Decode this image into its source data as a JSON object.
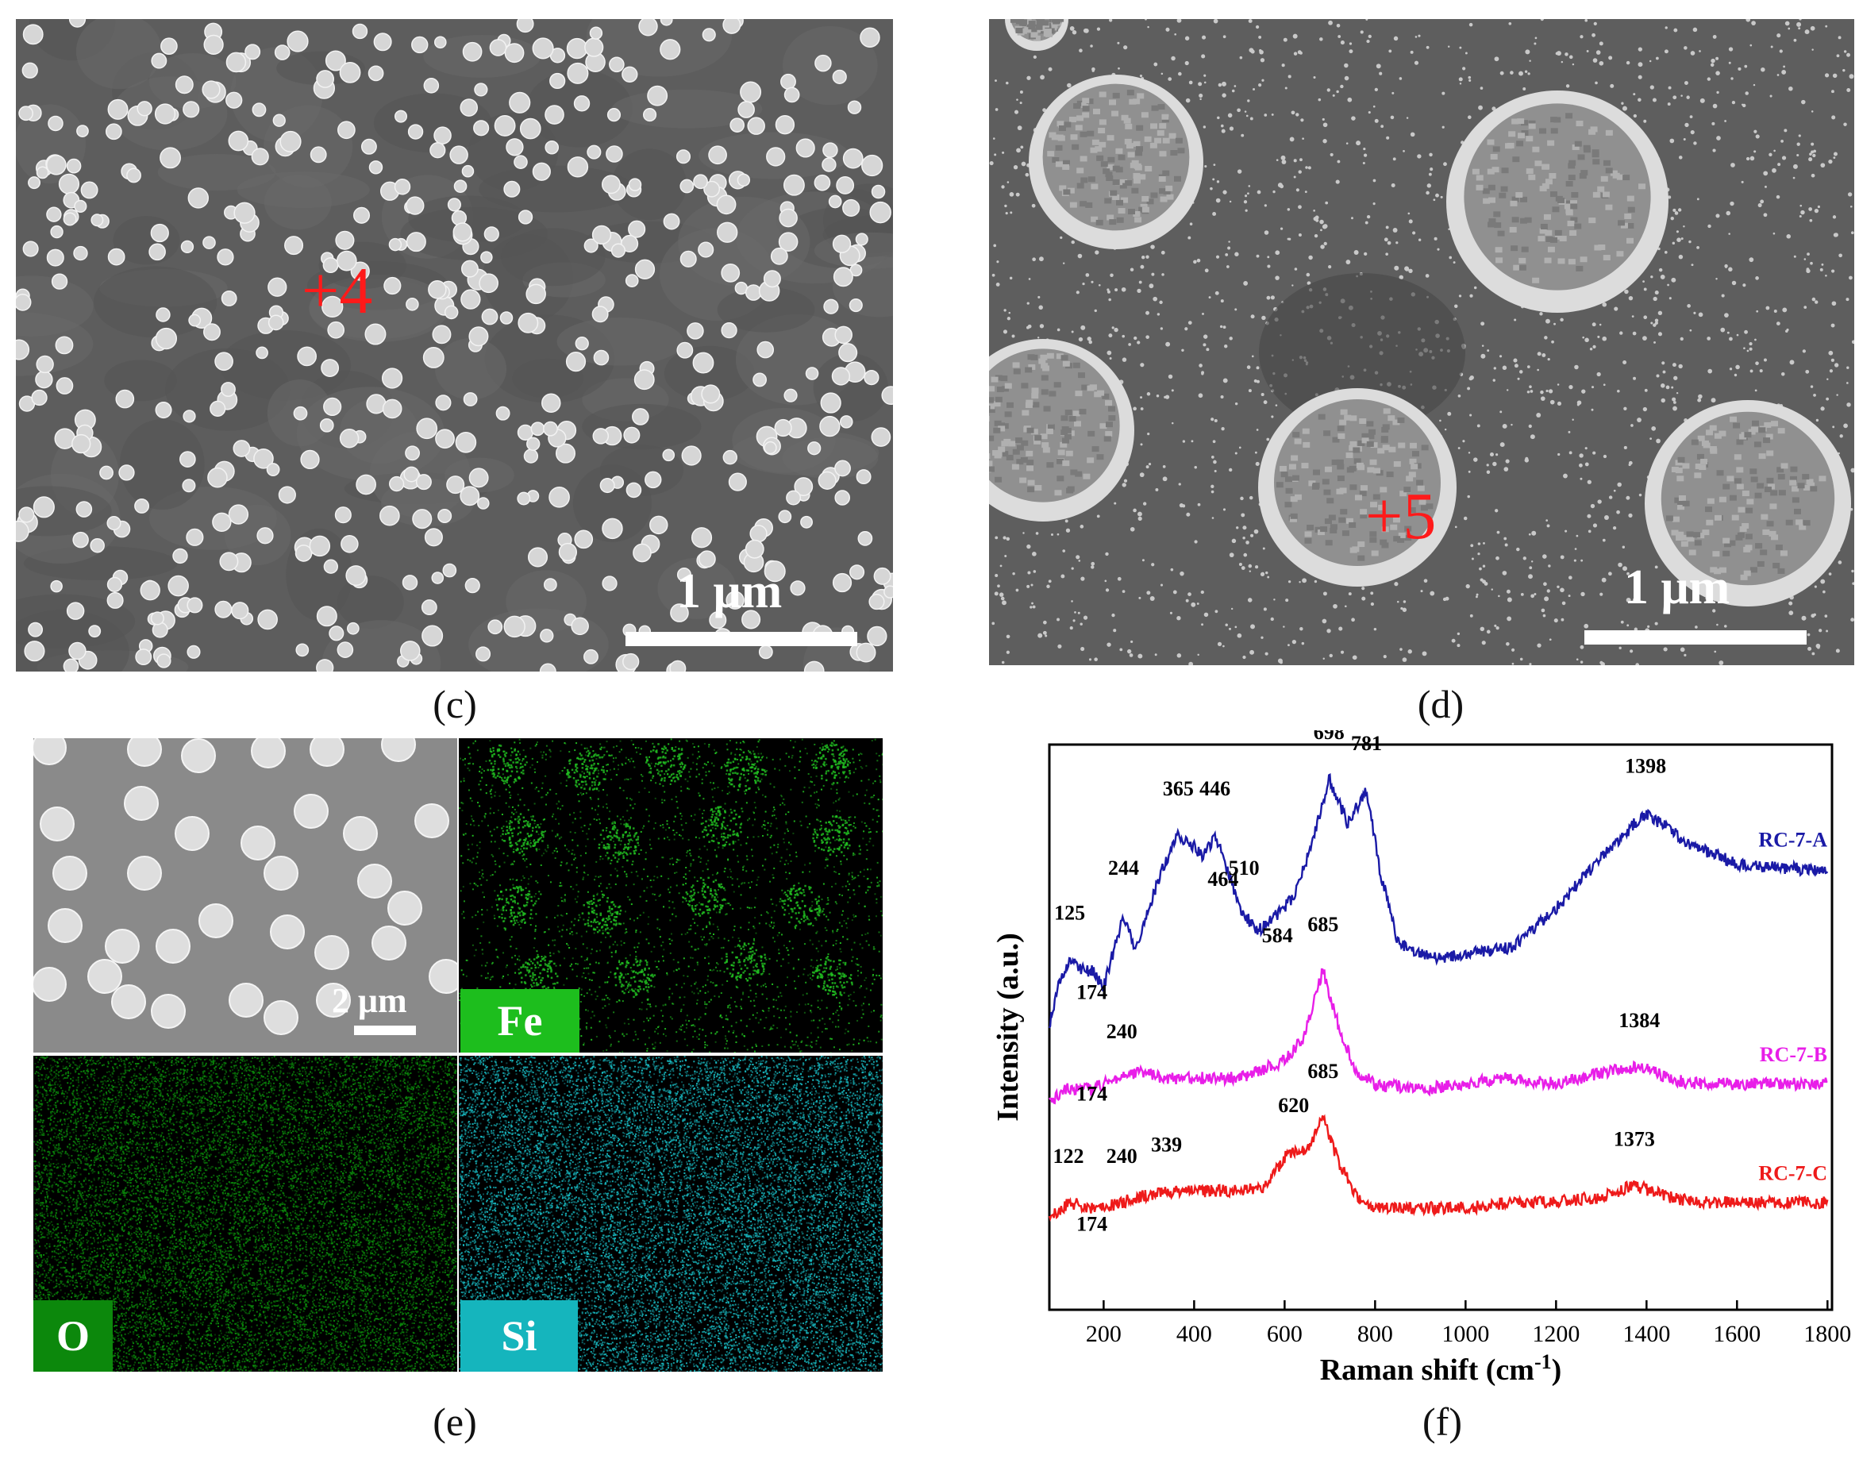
{
  "panels": {
    "c": {
      "caption": "(c)",
      "marker": "+4",
      "scale_label": "1 μm"
    },
    "d": {
      "caption": "(d)",
      "marker": "+5",
      "scale_label": "1 μm"
    },
    "e": {
      "caption": "(e)",
      "scale_label": "2 μm",
      "maps": [
        {
          "element": "Fe",
          "color": "#22c322"
        },
        {
          "element": "O",
          "color": "#0b8a0b"
        },
        {
          "element": "Si",
          "color": "#18b8c0"
        }
      ]
    },
    "f": {
      "caption": "(f)"
    }
  },
  "chart_data": {
    "type": "line",
    "xlabel": "Raman shift (cm",
    "xlabel_sup": "-1",
    "xlabel_end": ")",
    "ylabel": "Intensity (a.u.)",
    "xlim": [
      80,
      1810
    ],
    "xticks": [
      200,
      400,
      600,
      800,
      1000,
      1200,
      1400,
      1600,
      1800
    ],
    "y_ticks_shown": false,
    "series": [
      {
        "name": "RC-7-A",
        "color": "#1a1aa6",
        "points": [
          [
            80,
            0.5
          ],
          [
            100,
            0.58
          ],
          [
            125,
            0.62
          ],
          [
            150,
            0.6
          ],
          [
            174,
            0.6
          ],
          [
            200,
            0.57
          ],
          [
            220,
            0.63
          ],
          [
            244,
            0.7
          ],
          [
            270,
            0.64
          ],
          [
            300,
            0.71
          ],
          [
            330,
            0.78
          ],
          [
            365,
            0.84
          ],
          [
            400,
            0.82
          ],
          [
            420,
            0.8
          ],
          [
            446,
            0.84
          ],
          [
            464,
            0.8
          ],
          [
            500,
            0.71
          ],
          [
            540,
            0.67
          ],
          [
            584,
            0.7
          ],
          [
            620,
            0.73
          ],
          [
            660,
            0.82
          ],
          [
            698,
            0.94
          ],
          [
            740,
            0.86
          ],
          [
            781,
            0.92
          ],
          [
            810,
            0.78
          ],
          [
            850,
            0.65
          ],
          [
            900,
            0.63
          ],
          [
            950,
            0.62
          ],
          [
            1000,
            0.63
          ],
          [
            1100,
            0.64
          ],
          [
            1200,
            0.71
          ],
          [
            1300,
            0.8
          ],
          [
            1398,
            0.88
          ],
          [
            1450,
            0.85
          ],
          [
            1500,
            0.82
          ],
          [
            1600,
            0.79
          ],
          [
            1700,
            0.78
          ],
          [
            1800,
            0.78
          ]
        ],
        "annotations": [
          {
            "x": 125,
            "label": "125"
          },
          {
            "x": 174,
            "label": "174"
          },
          {
            "x": 244,
            "label": "244"
          },
          {
            "x": 365,
            "label": "365"
          },
          {
            "x": 446,
            "label": "446"
          },
          {
            "x": 464,
            "label": "464"
          },
          {
            "x": 510,
            "label": "510"
          },
          {
            "x": 584,
            "label": "584"
          },
          {
            "x": 698,
            "label": "698"
          },
          {
            "x": 781,
            "label": "781"
          },
          {
            "x": 1398,
            "label": "1398"
          }
        ]
      },
      {
        "name": "RC-7-B",
        "color": "#e81ee8",
        "points": [
          [
            80,
            0.37
          ],
          [
            120,
            0.39
          ],
          [
            174,
            0.39
          ],
          [
            200,
            0.4
          ],
          [
            240,
            0.41
          ],
          [
            280,
            0.42
          ],
          [
            339,
            0.41
          ],
          [
            400,
            0.41
          ],
          [
            500,
            0.41
          ],
          [
            600,
            0.44
          ],
          [
            640,
            0.48
          ],
          [
            685,
            0.6
          ],
          [
            720,
            0.5
          ],
          [
            760,
            0.42
          ],
          [
            800,
            0.4
          ],
          [
            900,
            0.39
          ],
          [
            1000,
            0.4
          ],
          [
            1100,
            0.41
          ],
          [
            1200,
            0.4
          ],
          [
            1300,
            0.42
          ],
          [
            1384,
            0.43
          ],
          [
            1450,
            0.41
          ],
          [
            1500,
            0.4
          ],
          [
            1600,
            0.4
          ],
          [
            1700,
            0.4
          ],
          [
            1800,
            0.4
          ]
        ],
        "annotations": [
          {
            "x": 174,
            "label": "174"
          },
          {
            "x": 240,
            "label": "240"
          },
          {
            "x": 685,
            "label": "685"
          },
          {
            "x": 1384,
            "label": "1384"
          }
        ]
      },
      {
        "name": "RC-7-C",
        "color": "#ee1a1a",
        "points": [
          [
            80,
            0.16
          ],
          [
            122,
            0.19
          ],
          [
            174,
            0.18
          ],
          [
            200,
            0.18
          ],
          [
            240,
            0.19
          ],
          [
            280,
            0.2
          ],
          [
            339,
            0.21
          ],
          [
            400,
            0.21
          ],
          [
            500,
            0.21
          ],
          [
            560,
            0.22
          ],
          [
            600,
            0.27
          ],
          [
            620,
            0.28
          ],
          [
            650,
            0.28
          ],
          [
            685,
            0.34
          ],
          [
            720,
            0.26
          ],
          [
            760,
            0.2
          ],
          [
            800,
            0.18
          ],
          [
            900,
            0.18
          ],
          [
            1000,
            0.18
          ],
          [
            1100,
            0.19
          ],
          [
            1200,
            0.19
          ],
          [
            1300,
            0.2
          ],
          [
            1373,
            0.22
          ],
          [
            1450,
            0.2
          ],
          [
            1500,
            0.19
          ],
          [
            1600,
            0.19
          ],
          [
            1700,
            0.19
          ],
          [
            1800,
            0.19
          ]
        ],
        "annotations": [
          {
            "x": 122,
            "label": "122"
          },
          {
            "x": 174,
            "label": "174"
          },
          {
            "x": 240,
            "label": "240"
          },
          {
            "x": 339,
            "label": "339"
          },
          {
            "x": 620,
            "label": "620"
          },
          {
            "x": 685,
            "label": "685"
          },
          {
            "x": 1373,
            "label": "1373"
          }
        ]
      }
    ]
  }
}
